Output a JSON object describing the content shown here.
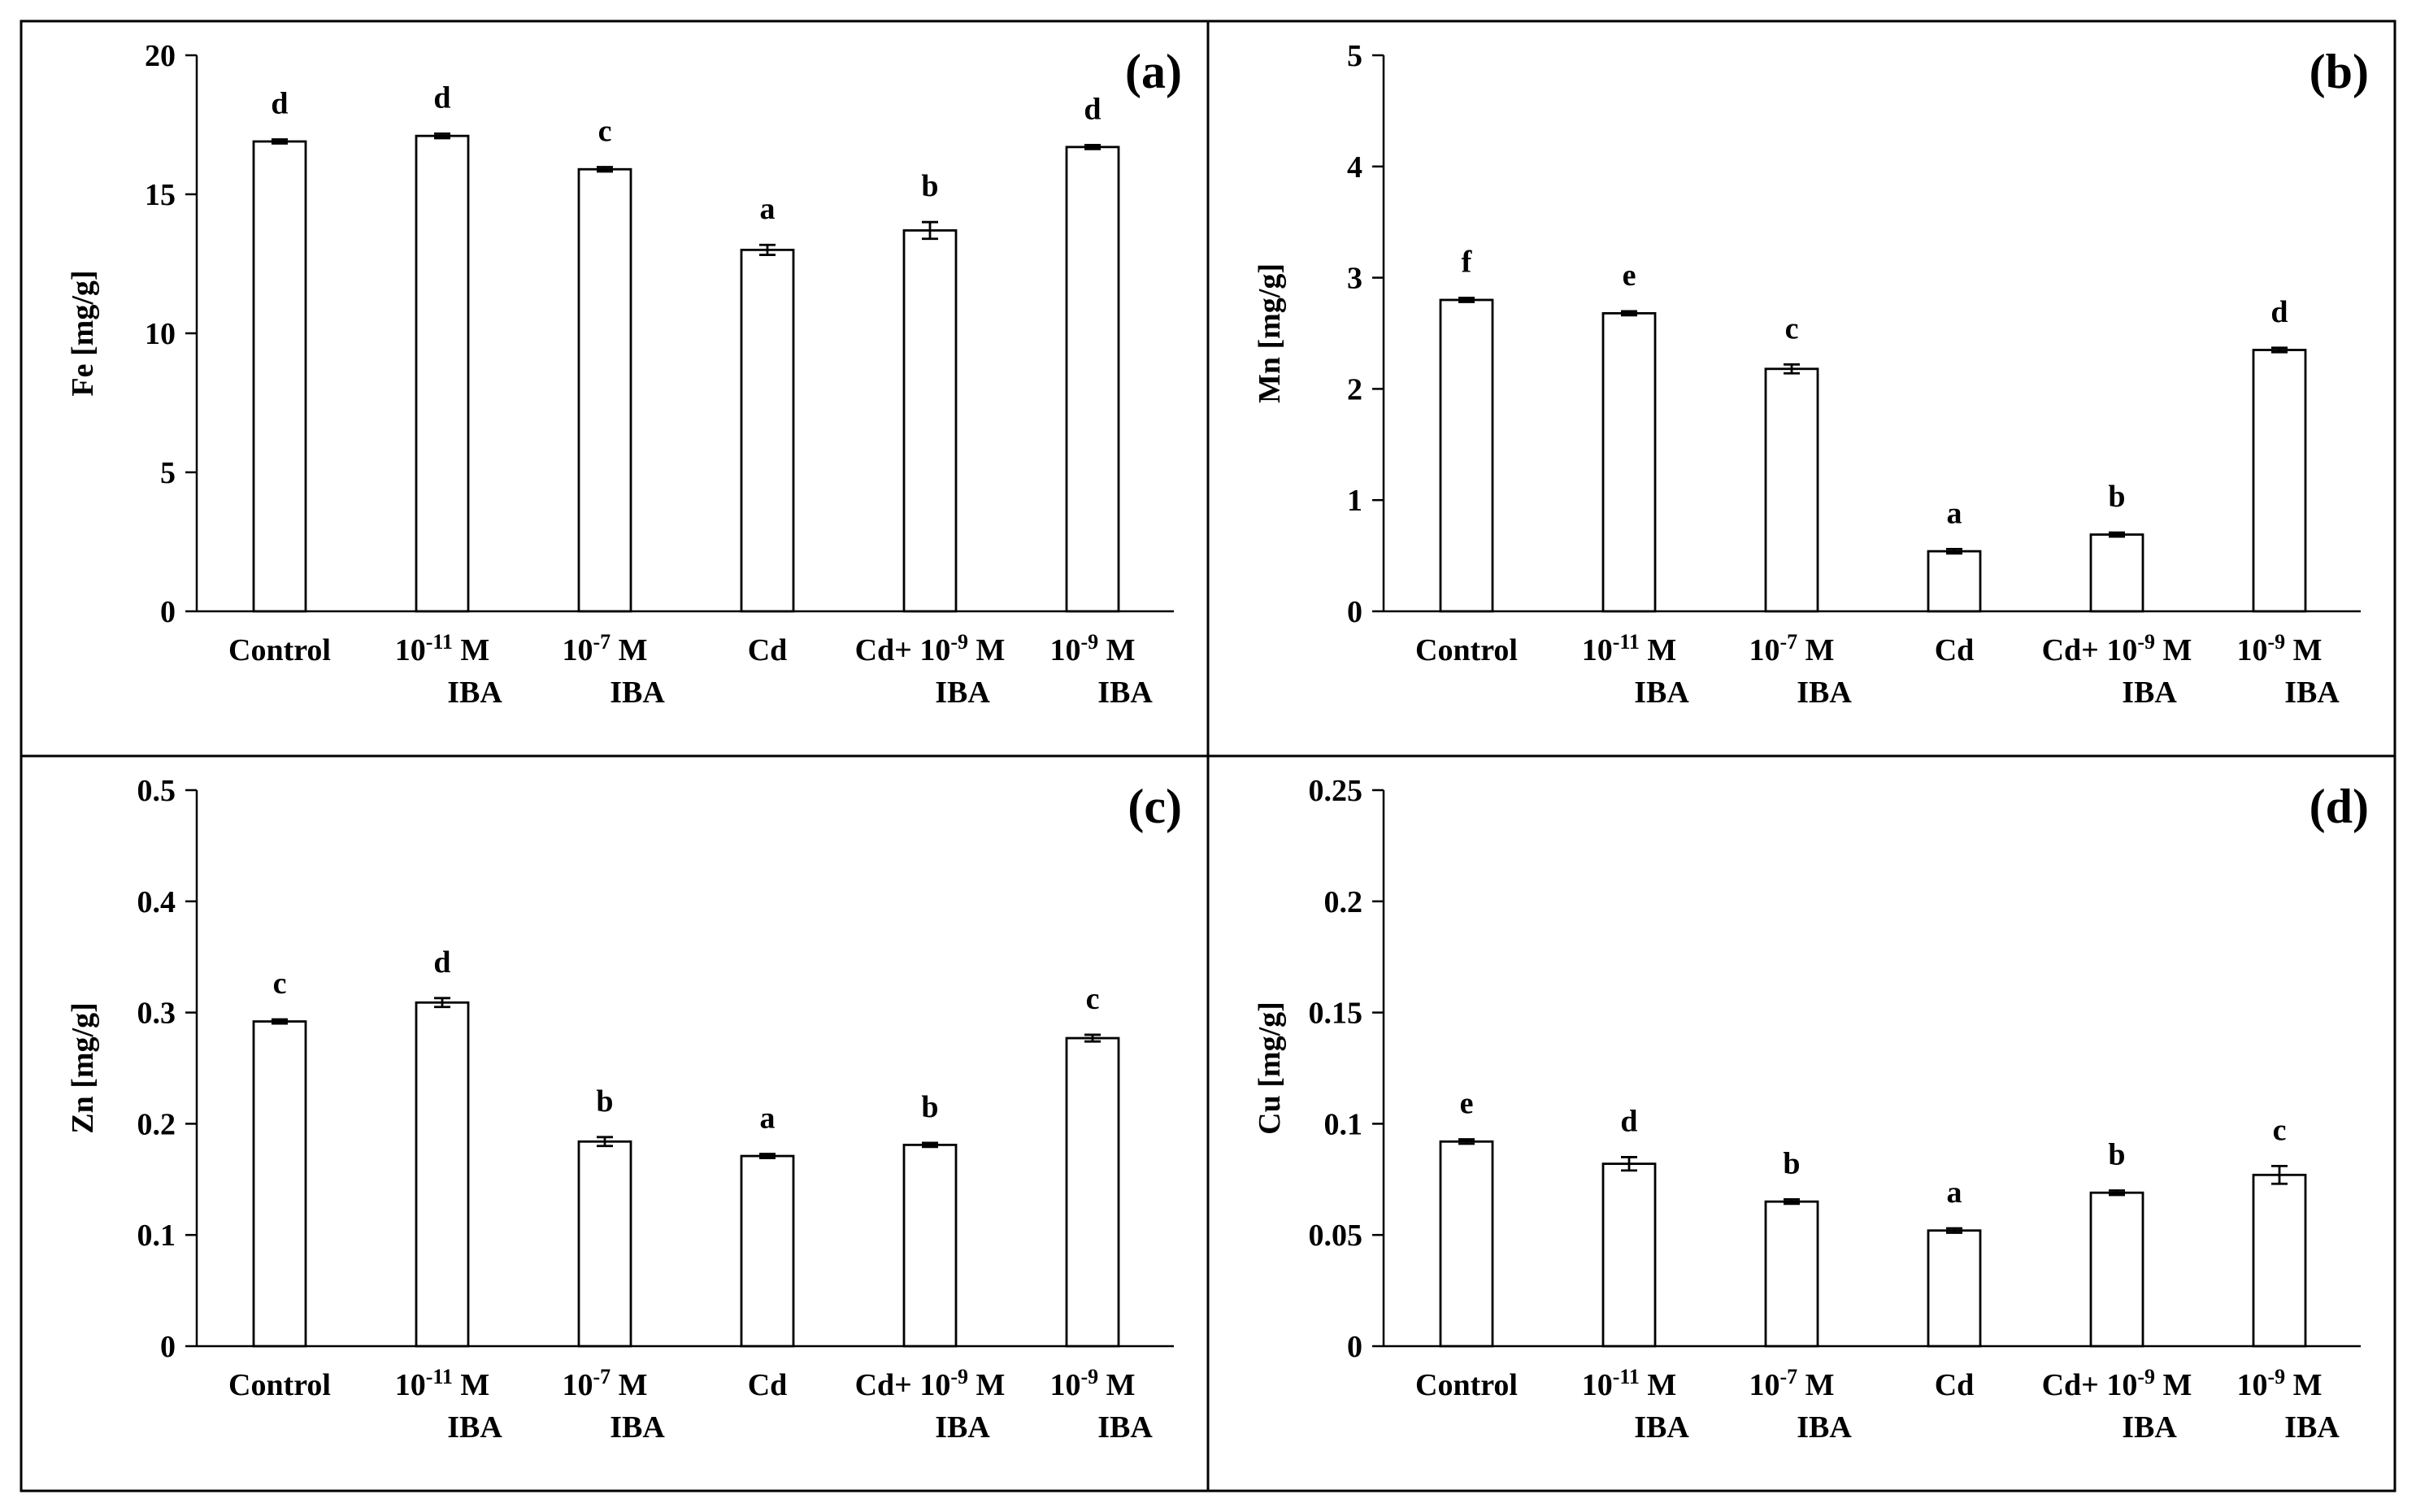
{
  "chart_data": [
    {
      "type": "bar",
      "panel_label": "(a)",
      "ylabel": "Fe [mg/g]",
      "ylim": [
        0,
        20
      ],
      "yticks": [
        "0",
        "5",
        "10",
        "15",
        "20"
      ],
      "categories": [
        {
          "line1": "Control",
          "line2": ""
        },
        {
          "line1": "10",
          "sup": "-11",
          "unit": " M",
          "line2": "IBA"
        },
        {
          "line1": "10",
          "sup": "-7",
          "unit": " M",
          "line2": "IBA"
        },
        {
          "line1": "Cd",
          "line2": ""
        },
        {
          "line1": "Cd+ 10",
          "sup": "-9",
          "unit": " M",
          "line2": "IBA"
        },
        {
          "line1": "10",
          "sup": "-9",
          "unit": " M",
          "line2": "IBA"
        }
      ],
      "values": [
        16.9,
        17.1,
        15.9,
        13.0,
        13.7,
        16.7
      ],
      "errors": [
        0.06,
        0.08,
        0.08,
        0.18,
        0.3,
        0.06
      ],
      "letters": [
        "d",
        "d",
        "c",
        "a",
        "b",
        "d"
      ]
    },
    {
      "type": "bar",
      "panel_label": "(b)",
      "ylabel": "Mn [mg/g]",
      "ylim": [
        0,
        5
      ],
      "yticks": [
        "0",
        "1",
        "2",
        "3",
        "4",
        "5"
      ],
      "categories": [
        {
          "line1": "Control",
          "line2": ""
        },
        {
          "line1": "10",
          "sup": "-11",
          "unit": " M",
          "line2": "IBA"
        },
        {
          "line1": "10",
          "sup": "-7",
          "unit": " M",
          "line2": "IBA"
        },
        {
          "line1": "Cd",
          "line2": ""
        },
        {
          "line1": "Cd+ 10",
          "sup": "-9",
          "unit": " M",
          "line2": "IBA"
        },
        {
          "line1": "10",
          "sup": "-9",
          "unit": " M",
          "line2": "IBA"
        }
      ],
      "values": [
        2.8,
        2.68,
        2.18,
        0.54,
        0.69,
        2.35
      ],
      "errors": [
        0.01,
        0.01,
        0.04,
        0.02,
        0.0,
        0.02
      ],
      "letters": [
        "f",
        "e",
        "c",
        "a",
        "b",
        "d"
      ]
    },
    {
      "type": "bar",
      "panel_label": "(c)",
      "ylabel": "Zn [mg/g]",
      "ylim": [
        0,
        0.5
      ],
      "yticks": [
        "0",
        "0.1",
        "0.2",
        "0.3",
        "0.4",
        "0.5"
      ],
      "categories": [
        {
          "line1": "Control",
          "line2": ""
        },
        {
          "line1": "10",
          "sup": "-11",
          "unit": " M",
          "line2": "IBA"
        },
        {
          "line1": "10",
          "sup": "-7",
          "unit": " M",
          "line2": "IBA"
        },
        {
          "line1": "Cd",
          "line2": ""
        },
        {
          "line1": "Cd+ 10",
          "sup": "-9",
          "unit": " M",
          "line2": "IBA"
        },
        {
          "line1": "10",
          "sup": "-9",
          "unit": " M",
          "line2": "IBA"
        }
      ],
      "values": [
        0.292,
        0.309,
        0.184,
        0.171,
        0.181,
        0.277
      ],
      "errors": [
        0.001,
        0.004,
        0.004,
        0.001,
        0.001,
        0.003
      ],
      "letters": [
        "c",
        "d",
        "b",
        "a",
        "b",
        "c"
      ]
    },
    {
      "type": "bar",
      "panel_label": "(d)",
      "ylabel": "Cu [mg/g]",
      "ylim": [
        0,
        0.25
      ],
      "yticks": [
        "0",
        "0.05",
        "0.1",
        "0.15",
        "0.2",
        "0.25"
      ],
      "categories": [
        {
          "line1": "Control",
          "line2": ""
        },
        {
          "line1": "10",
          "sup": "-11",
          "unit": " M",
          "line2": "IBA"
        },
        {
          "line1": "10",
          "sup": "-7",
          "unit": " M",
          "line2": "IBA"
        },
        {
          "line1": "Cd",
          "line2": ""
        },
        {
          "line1": "Cd+ 10",
          "sup": "-9",
          "unit": " M",
          "line2": "IBA"
        },
        {
          "line1": "10",
          "sup": "-9",
          "unit": " M",
          "line2": "IBA"
        }
      ],
      "values": [
        0.092,
        0.082,
        0.065,
        0.052,
        0.069,
        0.077
      ],
      "errors": [
        0.001,
        0.003,
        0.001,
        0.001,
        0.001,
        0.004
      ],
      "letters": [
        "e",
        "d",
        "b",
        "a",
        "b",
        "c"
      ]
    }
  ]
}
